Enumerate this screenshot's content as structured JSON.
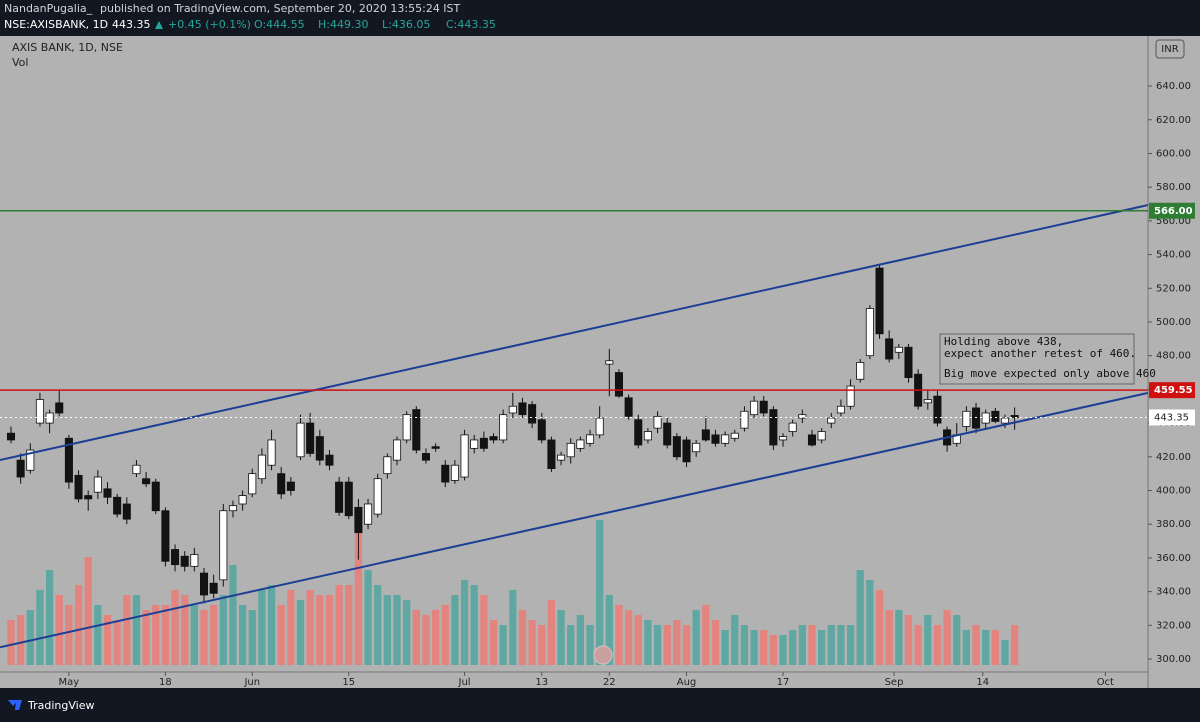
{
  "header": {
    "publisher": "NandanPugalia_",
    "published": "published on TradingView.com, September 20, 2020 13:55:24 IST",
    "symbol": "NSE:AXISBANK, 1D",
    "last": "443.35",
    "change": "+0.45 (+0.1%)",
    "open": "O:444.55",
    "high": "H:449.30",
    "low": "L:436.05",
    "close": "C:443.35"
  },
  "footer": {
    "brand": "TradingView"
  },
  "chart_data": {
    "type": "candlestick",
    "title": "AXIS BANK, 1D, NSE",
    "subtitle": "Vol",
    "currency": "INR",
    "up_color": "#ffffff",
    "down_color": "#131313",
    "volume_up_color": "#5fa8a1",
    "volume_down_color": "#e3847f",
    "open": [
      434,
      418,
      412,
      440,
      440,
      452,
      431,
      409,
      397,
      399,
      401,
      396,
      392,
      410,
      407,
      405,
      388,
      365,
      361,
      355,
      351,
      345,
      347,
      388,
      392,
      398,
      407,
      415,
      410,
      405,
      420,
      440,
      432,
      421,
      405,
      405,
      390,
      380,
      386,
      410,
      418,
      430,
      448,
      422,
      426,
      415,
      406,
      408,
      425,
      431,
      432,
      430,
      446,
      452,
      451,
      442,
      430,
      418,
      420,
      425,
      428,
      433,
      475,
      470,
      455,
      442,
      430,
      437,
      440,
      432,
      430,
      423,
      436,
      433,
      428,
      431,
      437,
      445,
      453,
      448,
      430,
      435,
      443,
      433,
      430,
      440,
      446,
      450,
      466,
      480,
      532,
      490,
      482,
      485,
      469,
      452,
      456,
      436,
      428,
      438,
      449,
      440,
      447,
      440,
      444.55
    ],
    "high": [
      438,
      422,
      428,
      458,
      448,
      460,
      433,
      412,
      400,
      412,
      405,
      398,
      396,
      418,
      411,
      407,
      390,
      368,
      364,
      366,
      354,
      350,
      392,
      394,
      400,
      413,
      425,
      436,
      414,
      408,
      445,
      446,
      436,
      424,
      408,
      408,
      395,
      395,
      410,
      422,
      432,
      447,
      450,
      425,
      428,
      418,
      418,
      436,
      433,
      435,
      434,
      448,
      458,
      455,
      453,
      446,
      432,
      423,
      431,
      432,
      436,
      450,
      484,
      472,
      457,
      445,
      437,
      447,
      443,
      434,
      432,
      430,
      444,
      436,
      435,
      436,
      450,
      456,
      456,
      450,
      434,
      442,
      448,
      436,
      437,
      446,
      454,
      466,
      478,
      510,
      534,
      495,
      487,
      487,
      472,
      460,
      460,
      438,
      440,
      450,
      452,
      448,
      449,
      445,
      449.3
    ],
    "low": [
      428,
      404,
      410,
      438,
      434,
      444,
      401,
      393,
      388,
      395,
      392,
      384,
      380,
      408,
      402,
      386,
      355,
      352,
      352,
      352,
      333,
      336,
      343,
      384,
      388,
      396,
      404,
      412,
      395,
      397,
      418,
      420,
      415,
      412,
      385,
      383,
      359,
      377,
      384,
      407,
      415,
      428,
      422,
      416,
      423,
      402,
      404,
      406,
      422,
      423,
      428,
      428,
      443,
      443,
      437,
      428,
      411,
      415,
      416,
      423,
      426,
      431,
      456,
      455,
      442,
      425,
      428,
      434,
      425,
      418,
      414,
      420,
      429,
      426,
      426,
      429,
      435,
      443,
      444,
      424,
      426,
      432,
      440,
      426,
      428,
      437,
      444,
      448,
      464,
      478,
      490,
      476,
      478,
      464,
      448,
      448,
      438,
      423,
      426,
      435,
      434,
      436,
      440,
      437,
      436.05
    ],
    "close": [
      430,
      408,
      424,
      454,
      446,
      446,
      405,
      395,
      395,
      408,
      396,
      386,
      383,
      415,
      404,
      388,
      358,
      356,
      355,
      362,
      338,
      339,
      388,
      391,
      397,
      410,
      421,
      430,
      398,
      400,
      440,
      422,
      418,
      415,
      387,
      385,
      375,
      392,
      407,
      420,
      430,
      445,
      424,
      418,
      425,
      405,
      415,
      433,
      430,
      425,
      430,
      445,
      450,
      445,
      440,
      430,
      413,
      421,
      428,
      430,
      433,
      443,
      477,
      456,
      444,
      427,
      435,
      444,
      427,
      420,
      417,
      428,
      430,
      428,
      433,
      434,
      447,
      453,
      446,
      427,
      432,
      440,
      445,
      427,
      435,
      443,
      450,
      462,
      476,
      508,
      493,
      478,
      485,
      467,
      450,
      454,
      440,
      427,
      433,
      447,
      437,
      446,
      441,
      443,
      443.35
    ],
    "volume": [
      45,
      50,
      55,
      75,
      95,
      70,
      60,
      80,
      108,
      60,
      50,
      45,
      70,
      70,
      55,
      60,
      60,
      75,
      70,
      60,
      55,
      60,
      70,
      100,
      60,
      55,
      75,
      80,
      60,
      75,
      65,
      75,
      70,
      70,
      80,
      80,
      135,
      95,
      80,
      70,
      70,
      65,
      55,
      50,
      55,
      60,
      70,
      85,
      80,
      70,
      45,
      40,
      75,
      55,
      45,
      40,
      65,
      55,
      40,
      50,
      40,
      145,
      70,
      60,
      55,
      50,
      45,
      40,
      40,
      45,
      40,
      55,
      60,
      45,
      35,
      50,
      40,
      35,
      35,
      30,
      30,
      35,
      40,
      40,
      35,
      40,
      40,
      40,
      95,
      85,
      75,
      55,
      55,
      50,
      40,
      50,
      40,
      55,
      50,
      35,
      40,
      35,
      35,
      25,
      40
    ],
    "vlim": [
      0,
      200
    ],
    "xlim": [
      -1.14,
      117.82
    ],
    "xticks": [
      {
        "value": 6,
        "label": "May"
      },
      {
        "value": 16,
        "label": "18"
      },
      {
        "value": 25,
        "label": "Jun"
      },
      {
        "value": 35,
        "label": "15"
      },
      {
        "value": 47,
        "label": "Jul"
      },
      {
        "value": 55,
        "label": "13"
      },
      {
        "value": 62,
        "label": "22"
      },
      {
        "value": 70,
        "label": "Aug"
      },
      {
        "value": 80,
        "label": "17"
      },
      {
        "value": 91.5,
        "label": "Sep"
      },
      {
        "value": 100.7,
        "label": "14"
      },
      {
        "value": 113.4,
        "label": "Oct"
      }
    ],
    "ylim": [
      292.3,
      669.7
    ],
    "yticks": [
      {
        "value": 300,
        "label": "300.00"
      },
      {
        "value": 320,
        "label": "320.00"
      },
      {
        "value": 340,
        "label": "340.00"
      },
      {
        "value": 360,
        "label": "360.00"
      },
      {
        "value": 380,
        "label": "380.00"
      },
      {
        "value": 400,
        "label": "400.00"
      },
      {
        "value": 420,
        "label": "420.00"
      },
      {
        "value": 440,
        "label": "440.00"
      },
      {
        "value": 460,
        "label": "460.00"
      },
      {
        "value": 480,
        "label": "480.00"
      },
      {
        "value": 500,
        "label": "500.00"
      },
      {
        "value": 520,
        "label": "520.00"
      },
      {
        "value": 540,
        "label": "540.00"
      },
      {
        "value": 560,
        "label": "560.00"
      },
      {
        "value": 580,
        "label": "580.00"
      },
      {
        "value": 600,
        "label": "600.00"
      },
      {
        "value": 620,
        "label": "620.00"
      },
      {
        "value": 640,
        "label": "640.00"
      }
    ],
    "hlines": [
      {
        "value": 566,
        "label": "566.00",
        "color": "#2e7d32"
      },
      {
        "value": 459.55,
        "label": "459.55",
        "color": "#d01010"
      }
    ],
    "last_price": {
      "value": 443.35,
      "label": "443.35"
    },
    "trendlines": [
      {
        "x": [
          -1.14,
          117.82
        ],
        "y": [
          418.1,
          569.4
        ],
        "color": "#1c3f95"
      },
      {
        "x": [
          -1.14,
          117.82
        ],
        "y": [
          307,
          457.9
        ],
        "color": "#1c3f95"
      }
    ],
    "annotation": [
      "Holding above 438,",
      "expect another retest of 460.",
      "Big move expected only above 460"
    ]
  }
}
